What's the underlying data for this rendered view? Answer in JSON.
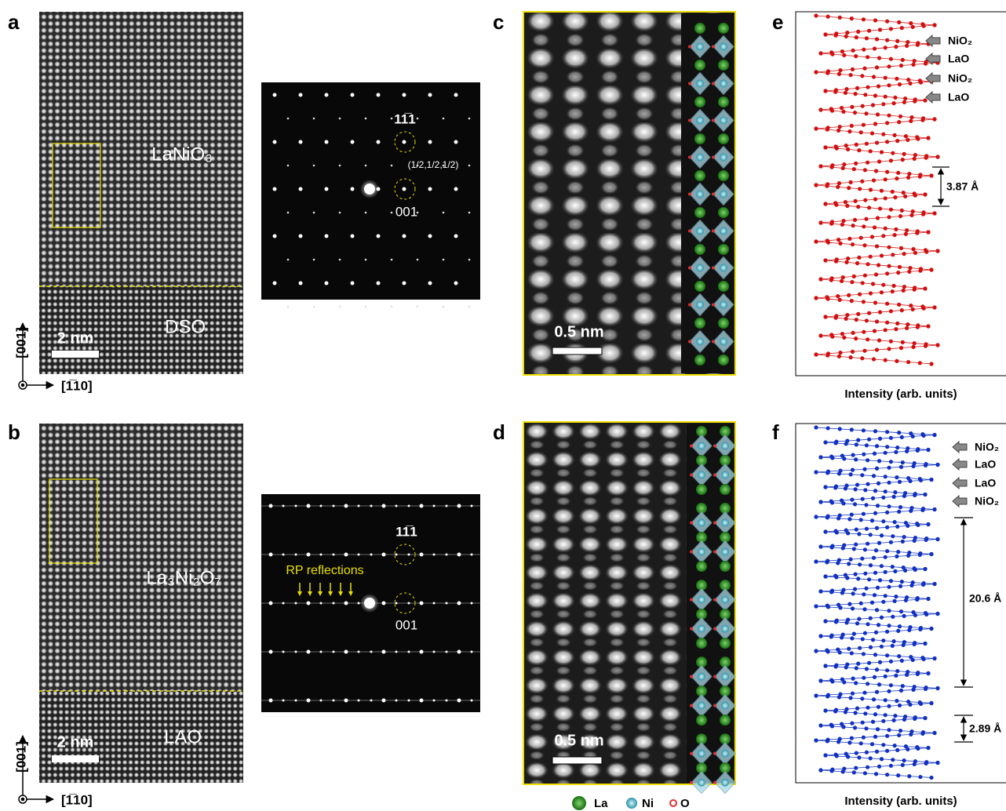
{
  "panels": {
    "a": {
      "label": "a",
      "material": "LaNiO₃",
      "substrate": "DSO",
      "scale_bar": "2 nm",
      "axis_vertical": "[001]",
      "axis_horizontal": "[1̅10]",
      "diffraction": {
        "spot_top": "11̅1",
        "spot_half": "(1/2,1/2,1/2)",
        "spot_bottom": "001"
      }
    },
    "b": {
      "label": "b",
      "material": "La₃Ni₂O₇",
      "substrate": "LAO",
      "scale_bar": "2 nm",
      "axis_vertical": "[001]",
      "axis_horizontal": "[1̅10]",
      "diffraction": {
        "spot_top": "11̅1",
        "annotation": "RP reflections",
        "spot_bottom": "001"
      }
    },
    "c": {
      "label": "c",
      "scale_bar": "0.5 nm"
    },
    "d": {
      "label": "d",
      "scale_bar": "0.5 nm"
    },
    "e": {
      "label": "e",
      "layers": [
        "NiO₂",
        "LaO",
        "NiO₂",
        "LaO"
      ],
      "spacing": "3.87 Å",
      "xlabel": "Intensity (arb. units)"
    },
    "f": {
      "label": "f",
      "layers": [
        "NiO₂",
        "LaO",
        "LaO",
        "NiO₂"
      ],
      "spacing_large": "20.6 Å",
      "spacing_small": "2.89 Å",
      "xlabel": "Intensity (arb. units)"
    }
  },
  "legend": {
    "items": [
      "La",
      "Ni",
      "O"
    ]
  }
}
